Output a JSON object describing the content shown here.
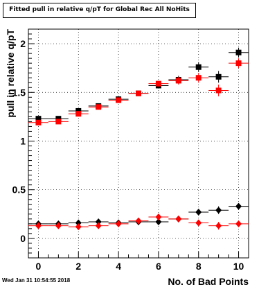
{
  "chart_data": {
    "type": "scatter",
    "title": "Fitted pull in relative q/pT for Global Rec All NoHits",
    "xlabel": "No. of Bad Points",
    "ylabel": "pull in relative q/pT",
    "xlim": [
      -0.5,
      10.5
    ],
    "ylim": [
      -0.2,
      2.15
    ],
    "grid": true,
    "x_ticks": [
      0,
      2,
      4,
      6,
      8,
      10
    ],
    "y_ticks": [
      0,
      0.5,
      1,
      1.5,
      2
    ],
    "x_tick_labels": [
      "0",
      "2",
      "4",
      "6",
      "8",
      "10"
    ],
    "y_tick_labels": [
      "0",
      "0.5",
      "1",
      "1.5",
      "2"
    ],
    "series": [
      {
        "marker": "square",
        "color": "#000000",
        "x": [
          0,
          1,
          2,
          3,
          4,
          5,
          6,
          7,
          8,
          9,
          10
        ],
        "y": [
          1.23,
          1.23,
          1.31,
          1.36,
          1.43,
          1.49,
          1.57,
          1.63,
          1.76,
          1.66,
          1.91
        ],
        "yerr": [
          0.02,
          0.02,
          0.02,
          0.02,
          0.02,
          0.02,
          0.03,
          0.04,
          0.05,
          0.06,
          0.05
        ]
      },
      {
        "marker": "square",
        "color": "#ff0000",
        "x": [
          0,
          1,
          2,
          3,
          4,
          5,
          6,
          7,
          8,
          9,
          10
        ],
        "y": [
          1.19,
          1.2,
          1.28,
          1.35,
          1.42,
          1.49,
          1.59,
          1.62,
          1.65,
          1.52,
          1.8
        ],
        "yerr": [
          0.02,
          0.02,
          0.02,
          0.02,
          0.02,
          0.02,
          0.03,
          0.04,
          0.05,
          0.06,
          0.05
        ]
      },
      {
        "marker": "diamond",
        "color": "#000000",
        "x": [
          0,
          1,
          2,
          3,
          4,
          5,
          6,
          7,
          8,
          9,
          10
        ],
        "y": [
          0.15,
          0.15,
          0.16,
          0.17,
          0.16,
          0.17,
          0.17,
          0.2,
          0.27,
          0.29,
          0.33
        ],
        "yerr": [
          0.01,
          0.01,
          0.01,
          0.01,
          0.01,
          0.01,
          0.02,
          0.03,
          0.03,
          0.04,
          0.03
        ]
      },
      {
        "marker": "diamond",
        "color": "#ff0000",
        "x": [
          0,
          1,
          2,
          3,
          4,
          5,
          6,
          7,
          8,
          9,
          10
        ],
        "y": [
          0.13,
          0.13,
          0.12,
          0.13,
          0.15,
          0.18,
          0.22,
          0.2,
          0.16,
          0.13,
          0.15
        ],
        "yerr": [
          0.01,
          0.01,
          0.01,
          0.01,
          0.01,
          0.01,
          0.02,
          0.03,
          0.03,
          0.04,
          0.03
        ]
      }
    ]
  },
  "footer": {
    "timestamp": "Wed Jan 31 10:54:55 2018"
  }
}
